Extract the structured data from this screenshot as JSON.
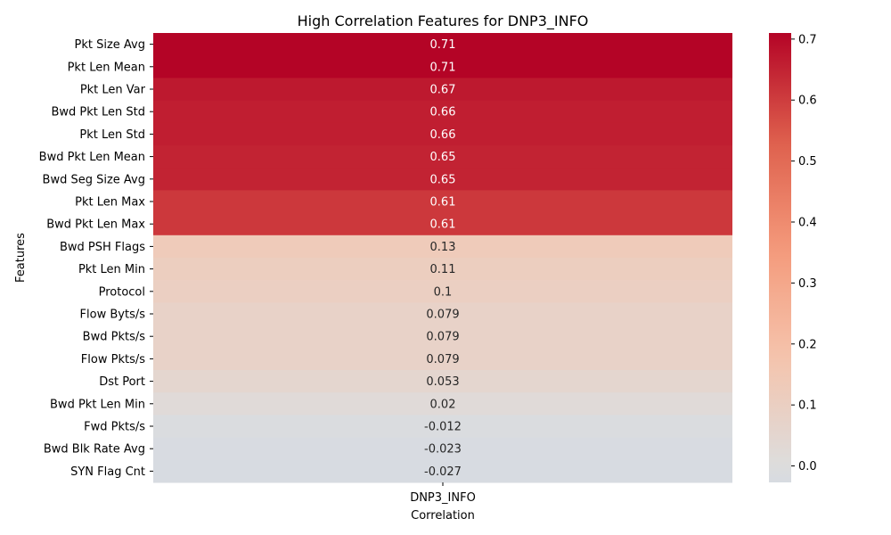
{
  "chart_data": {
    "type": "heatmap",
    "title": "High Correlation Features for DNP3_INFO",
    "xlabel": "Correlation",
    "ylabel": "Features",
    "columns": [
      "DNP3_INFO"
    ],
    "rows": [
      "Pkt Size Avg",
      "Pkt Len Mean",
      "Pkt Len Var",
      "Bwd Pkt Len Std",
      "Pkt Len Std",
      "Bwd Pkt Len Mean",
      "Bwd Seg Size Avg",
      "Pkt Len Max",
      "Bwd Pkt Len Max",
      "Bwd PSH Flags",
      "Pkt Len Min",
      "Protocol",
      "Flow Byts/s",
      "Bwd Pkts/s",
      "Flow Pkts/s",
      "Dst Port",
      "Bwd Pkt Len Min",
      "Fwd Pkts/s",
      "Bwd Blk Rate Avg",
      "SYN Flag Cnt"
    ],
    "values": [
      0.71,
      0.71,
      0.67,
      0.66,
      0.66,
      0.65,
      0.65,
      0.61,
      0.61,
      0.13,
      0.11,
      0.1,
      0.079,
      0.079,
      0.079,
      0.053,
      0.02,
      -0.012,
      -0.023,
      -0.027
    ],
    "cell_labels": [
      "0.71",
      "0.71",
      "0.67",
      "0.66",
      "0.66",
      "0.65",
      "0.65",
      "0.61",
      "0.61",
      "0.13",
      "0.11",
      "0.1",
      "0.079",
      "0.079",
      "0.079",
      "0.053",
      "0.02",
      "-0.012",
      "-0.023",
      "-0.027"
    ],
    "colorbar": {
      "colormap": "coolwarm",
      "range": [
        -0.027,
        0.71
      ],
      "ticks": [
        0.0,
        0.1,
        0.2,
        0.3,
        0.4,
        0.5,
        0.6,
        0.7
      ],
      "tick_labels": [
        "0.0",
        "0.1",
        "0.2",
        "0.3",
        "0.4",
        "0.5",
        "0.6",
        "0.7"
      ]
    },
    "grid": false,
    "legend": "colorbar-right"
  }
}
